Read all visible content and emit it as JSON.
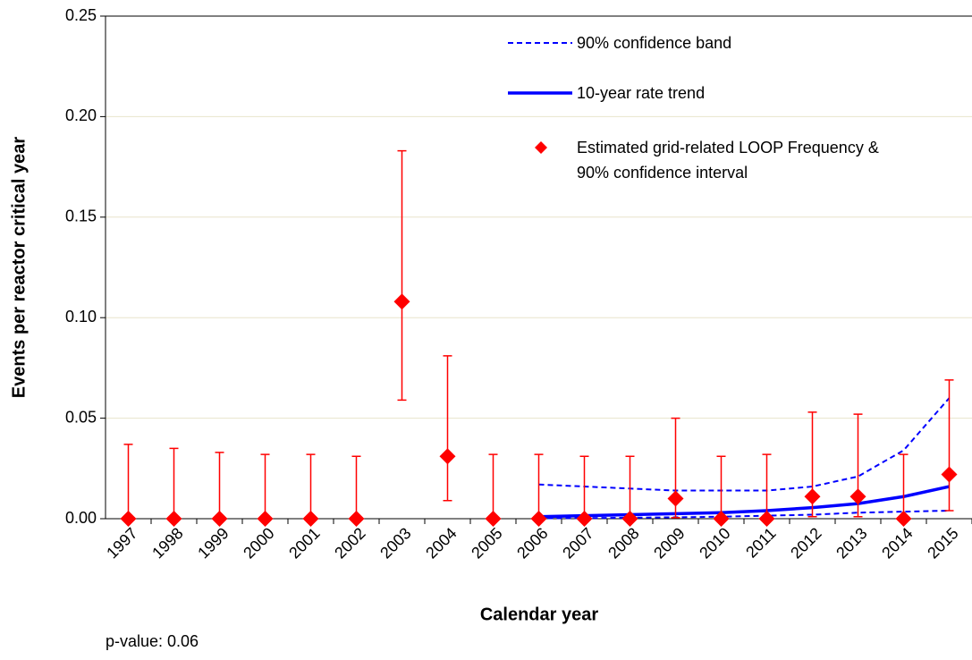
{
  "chart_data": {
    "type": "errorbar",
    "xlabel": "Calendar year",
    "ylabel": "Events per reactor critical year",
    "annotation": "p-value: 0.06",
    "categories": [
      "1997",
      "1998",
      "1999",
      "2000",
      "2001",
      "2002",
      "2003",
      "2004",
      "2005",
      "2006",
      "2007",
      "2008",
      "2009",
      "2010",
      "2011",
      "2012",
      "2013",
      "2014",
      "2015"
    ],
    "ylim": [
      0,
      0.25
    ],
    "yticks": [
      {
        "value": 0,
        "label": "0.00"
      },
      0.05,
      {
        "value": 0.1,
        "label": "0.10"
      },
      0.15,
      {
        "value": 0.2,
        "label": "0.20"
      },
      0.25
    ],
    "grid": true,
    "series": [
      {
        "name": "90% confidence band",
        "color": "#0000ff",
        "style": "dashed",
        "upper": [
          null,
          null,
          null,
          null,
          null,
          null,
          null,
          null,
          null,
          0.017,
          0.016,
          0.015,
          0.014,
          0.014,
          0.014,
          0.016,
          0.021,
          0.034,
          0.06
        ],
        "lower": [
          null,
          null,
          null,
          null,
          null,
          null,
          null,
          null,
          null,
          0.0002,
          0.0003,
          0.0005,
          0.0007,
          0.001,
          0.0015,
          0.002,
          0.003,
          0.0035,
          0.004
        ]
      },
      {
        "name": "10-year rate trend",
        "color": "#0000ff",
        "style": "solid",
        "values": [
          null,
          null,
          null,
          null,
          null,
          null,
          null,
          null,
          null,
          0.001,
          0.0015,
          0.002,
          0.0025,
          0.003,
          0.004,
          0.0055,
          0.0075,
          0.011,
          0.016
        ]
      },
      {
        "name": "Estimated grid-related LOOP Frequency & 90% confidence interval",
        "color": "#ff0000",
        "style": "marker",
        "values": [
          0,
          0,
          0,
          0,
          0,
          0,
          0.108,
          0.031,
          0,
          0,
          0,
          0,
          0.01,
          0,
          0,
          0.011,
          0.011,
          0,
          0.022
        ],
        "lower": [
          0,
          0,
          0,
          0,
          0,
          0,
          0.059,
          0.009,
          0,
          0,
          0,
          0,
          0.0005,
          0,
          0,
          0.001,
          0.001,
          0,
          0.004
        ],
        "upper": [
          0.037,
          0.035,
          0.033,
          0.032,
          0.032,
          0.031,
          0.183,
          0.081,
          0.032,
          0.032,
          0.031,
          0.031,
          0.05,
          0.031,
          0.032,
          0.053,
          0.052,
          0.032,
          0.069
        ]
      }
    ]
  }
}
